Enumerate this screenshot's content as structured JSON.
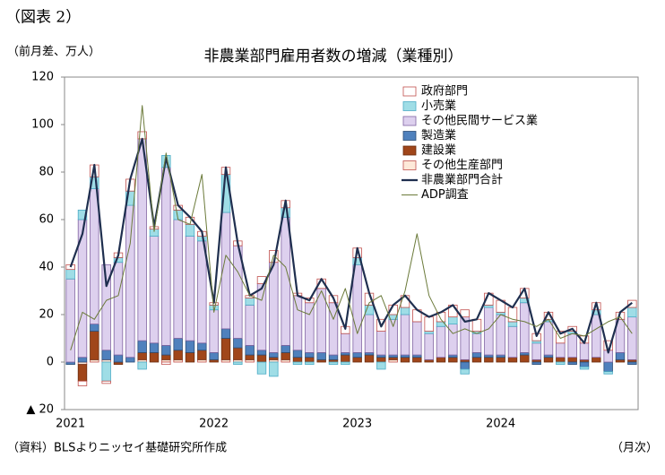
{
  "page_label": "（図表 2）",
  "chart_data": {
    "type": "bar",
    "title": "非農業部門雇用者数の増減（業種別）",
    "y_unit": "（前月差、万人）",
    "x_unit": "（月次）",
    "source": "（資料）BLSよりニッセイ基礎研究所作成",
    "categories": [
      "2021",
      null,
      null,
      null,
      null,
      null,
      null,
      null,
      null,
      null,
      null,
      null,
      "2022",
      null,
      null,
      null,
      null,
      null,
      null,
      null,
      null,
      null,
      null,
      null,
      "2023",
      null,
      null,
      null,
      null,
      null,
      null,
      null,
      null,
      null,
      null,
      null,
      "2024",
      null,
      null,
      null,
      null,
      null,
      null,
      null,
      null,
      null,
      null,
      null
    ],
    "ylim": [
      -20,
      120
    ],
    "yticks": [
      {
        "value": -20,
        "label": "▲ 20"
      },
      0,
      20,
      40,
      60,
      80,
      100,
      120
    ],
    "series": [
      {
        "name": "政府部門",
        "type": "bar",
        "color": "#ffffff",
        "stroke": "#c0504d",
        "values": [
          2,
          -2,
          5,
          -1,
          2,
          5,
          3,
          1,
          -1,
          2,
          3,
          2,
          1,
          3,
          2,
          1,
          3,
          5,
          3,
          1,
          2,
          4,
          3,
          3,
          4,
          5,
          5,
          4,
          5,
          5,
          6,
          4,
          5,
          3,
          5,
          5,
          5,
          6,
          4,
          3,
          3,
          5,
          2,
          3,
          3,
          4,
          3,
          3
        ]
      },
      {
        "name": "小売業",
        "type": "bar",
        "color": "#9fdde6",
        "stroke": "#4bacc6",
        "values": [
          4,
          4,
          5,
          -8,
          2,
          6,
          -3,
          3,
          5,
          4,
          5,
          2,
          2,
          16,
          -1,
          3,
          -5,
          -6,
          4,
          -1,
          -1,
          0,
          -1,
          -1,
          3,
          4,
          -3,
          2,
          3,
          0,
          1,
          2,
          3,
          -2,
          1,
          1,
          1,
          2,
          2,
          1,
          1,
          -1,
          1,
          -1,
          2,
          -1,
          0,
          4
        ]
      },
      {
        "name": "その他民間サービス業",
        "type": "bar",
        "color": "#ddd0ee",
        "stroke": "#8064a2",
        "values": [
          35,
          58,
          57,
          36,
          39,
          64,
          85,
          45,
          75,
          50,
          44,
          43,
          18,
          49,
          39,
          17,
          28,
          38,
          54,
          23,
          21,
          27,
          22,
          8,
          37,
          16,
          10,
          15,
          17,
          14,
          11,
          13,
          13,
          18,
          8,
          20,
          17,
          13,
          21,
          7,
          14,
          6,
          10,
          7,
          18,
          5,
          14,
          18
        ]
      },
      {
        "name": "製造業",
        "type": "bar",
        "color": "#4f81bd",
        "stroke": "#2c4d75",
        "values": [
          -1,
          2,
          3,
          4,
          3,
          2,
          5,
          4,
          4,
          5,
          5,
          3,
          3,
          4,
          4,
          4,
          2,
          2,
          3,
          3,
          2,
          3,
          2,
          1,
          2,
          1,
          1,
          1,
          1,
          1,
          0,
          0,
          1,
          -3,
          2,
          1,
          1,
          0,
          1,
          -1,
          1,
          0,
          -1,
          -2,
          0,
          -4,
          3,
          -1
        ]
      },
      {
        "name": "建設業",
        "type": "bar",
        "color": "#a0461a",
        "stroke": "#6b2d0f",
        "values": [
          0,
          -7,
          12,
          0,
          -1,
          0,
          3,
          4,
          2,
          4,
          4,
          4,
          1,
          9,
          5,
          2,
          3,
          1,
          3,
          2,
          2,
          1,
          1,
          3,
          2,
          3,
          2,
          1,
          2,
          2,
          1,
          2,
          2,
          1,
          2,
          2,
          2,
          2,
          3,
          1,
          2,
          2,
          2,
          1,
          2,
          0,
          1,
          1
        ]
      },
      {
        "name": "その他生産部門",
        "type": "bar",
        "color": "#fde9d9",
        "stroke": "#c0504d",
        "values": [
          0,
          -1,
          1,
          1,
          0,
          0,
          1,
          0,
          1,
          1,
          0,
          1,
          0,
          1,
          1,
          1,
          0,
          1,
          1,
          0,
          0,
          0,
          0,
          0,
          0,
          0,
          0,
          1,
          0,
          0,
          0,
          0,
          0,
          0,
          0,
          0,
          0,
          0,
          0,
          0,
          0,
          0,
          0,
          0,
          0,
          0,
          0,
          0
        ]
      },
      {
        "name": "非農業部門合計",
        "type": "line",
        "color": "#1f2f4f",
        "width": 2.2,
        "values": [
          40,
          54,
          83,
          32,
          45,
          77,
          94,
          57,
          86,
          66,
          61,
          55,
          25,
          82,
          50,
          28,
          31,
          41,
          68,
          28,
          26,
          35,
          27,
          14,
          48,
          29,
          15,
          24,
          28,
          22,
          19,
          21,
          24,
          17,
          18,
          29,
          26,
          23,
          31,
          11,
          21,
          12,
          14,
          8,
          25,
          4,
          21,
          25
        ]
      },
      {
        "name": "ADP調査",
        "type": "line",
        "color": "#6b7a3a",
        "width": 1,
        "values": [
          5,
          21,
          18,
          26,
          28,
          50,
          108,
          55,
          88,
          60,
          58,
          79,
          21,
          45,
          38,
          28,
          26,
          45,
          40,
          22,
          20,
          30,
          18,
          31,
          12,
          25,
          28,
          15,
          30,
          54,
          28,
          18,
          12,
          14,
          12,
          14,
          20,
          18,
          17,
          15,
          18,
          10,
          12,
          11,
          14,
          17,
          19,
          12
        ]
      }
    ]
  }
}
